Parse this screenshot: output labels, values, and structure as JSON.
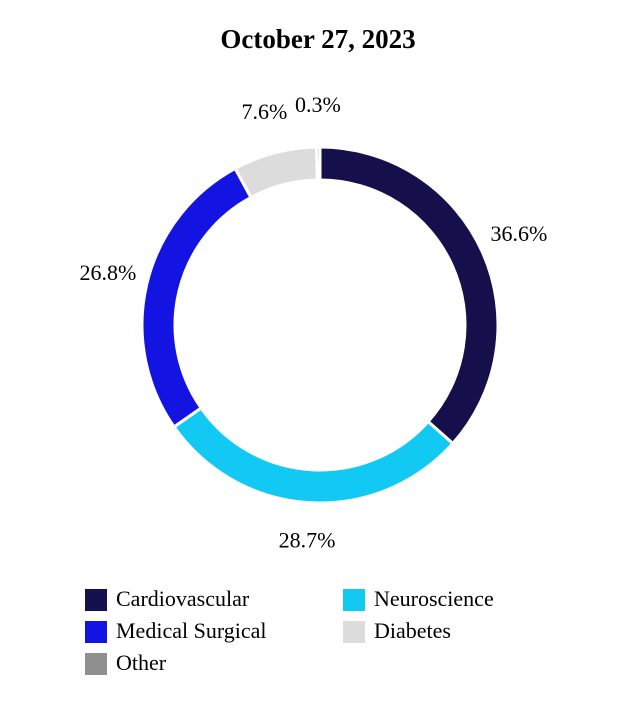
{
  "chart_data": {
    "type": "donut",
    "title": "October 27, 2023",
    "categories": [
      "Cardiovascular",
      "Neuroscience",
      "Medical Surgical",
      "Diabetes",
      "Other"
    ],
    "values": [
      36.6,
      28.7,
      26.8,
      7.6,
      0.3
    ],
    "value_labels": [
      "36.6%",
      "28.7%",
      "26.8%",
      "7.6%",
      "0.3%"
    ],
    "colors": [
      "#15104b",
      "#12c9f3",
      "#1414e2",
      "#dcdcdc",
      "#8f8f8f"
    ]
  }
}
